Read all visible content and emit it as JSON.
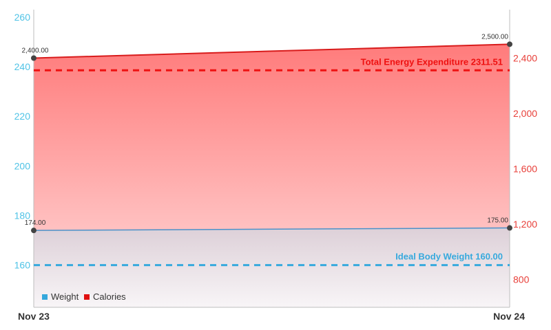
{
  "chart_data": {
    "type": "area",
    "x": [
      "Nov 23",
      "Nov 24"
    ],
    "series": [
      {
        "name": "Weight",
        "axis": "left",
        "values": [
          174.0,
          175.0
        ],
        "labels": [
          "174.00",
          "175.00"
        ],
        "color": "#4a90c8"
      },
      {
        "name": "Calories",
        "axis": "right",
        "values": [
          2400.0,
          2500.0
        ],
        "labels": [
          "2,400.00",
          "2,500.00"
        ],
        "color": "#d81b1b"
      }
    ],
    "y_left": {
      "ylim": [
        143,
        263
      ],
      "ticks": [
        160,
        180,
        200,
        220,
        240,
        260
      ],
      "color": "#4fc3e6"
    },
    "y_right": {
      "ylim": [
        600,
        2750
      ],
      "ticks": [
        800,
        1200,
        1600,
        2000,
        2400
      ],
      "tick_labels": [
        "800",
        "1,200",
        "1,600",
        "2,000",
        "2,400"
      ],
      "color": "#e8403a"
    },
    "reference_lines": [
      {
        "label": "Ideal Body Weight 160.00",
        "axis": "left",
        "value": 160.0,
        "color": "#36a9dd"
      },
      {
        "label": "Total Energy Expenditure 2311.51",
        "axis": "right",
        "value": 2311.51,
        "color": "#ee1111"
      }
    ],
    "legend": {
      "position": "bottom-left",
      "items": [
        {
          "label": "Weight",
          "color": "#35a8dc"
        },
        {
          "label": "Calories",
          "color": "#e01010"
        }
      ]
    },
    "grid": false
  }
}
